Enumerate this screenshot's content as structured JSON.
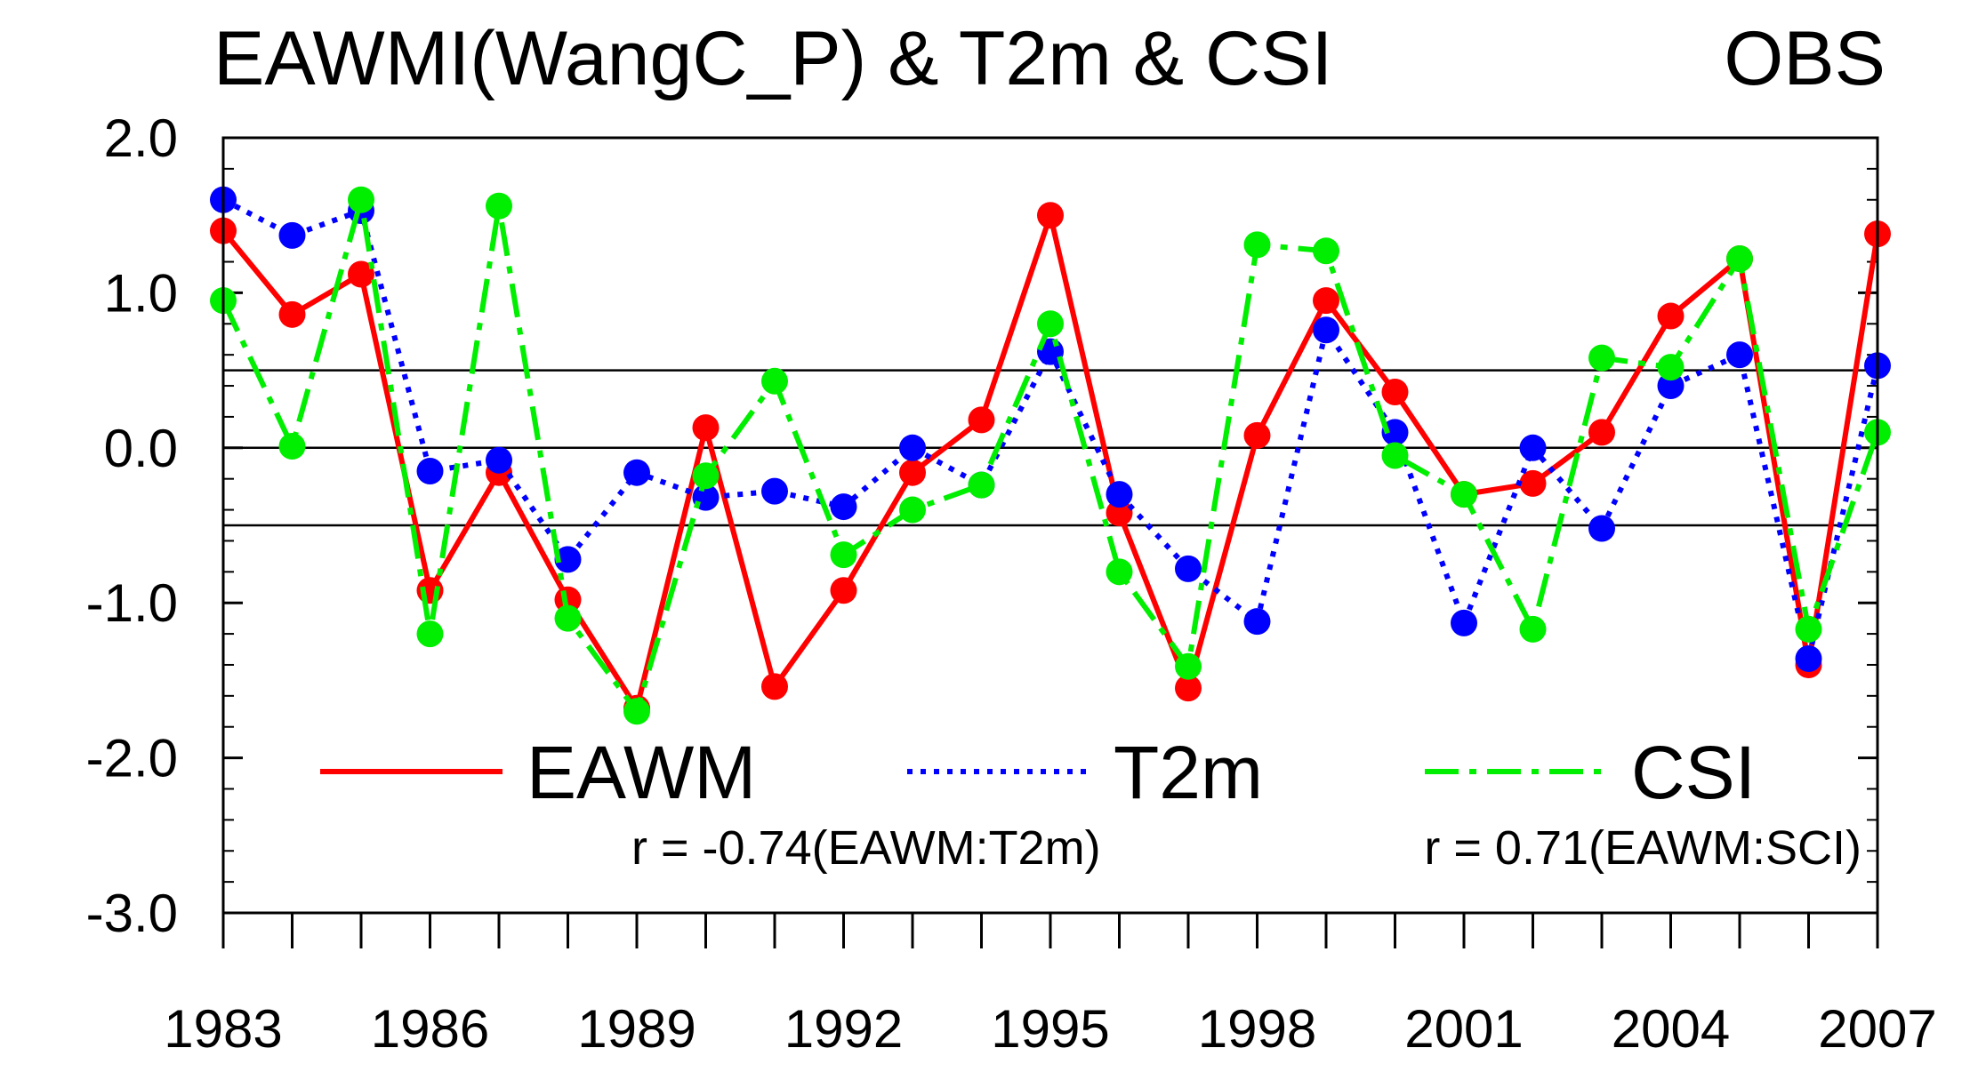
{
  "chart_data": {
    "type": "line",
    "title": "EAWMI(WangC_P) & T2m & CSI",
    "title_right": "OBS",
    "xlabel": "",
    "ylabel": "",
    "x": [
      1983,
      1984,
      1985,
      1986,
      1987,
      1988,
      1989,
      1990,
      1991,
      1992,
      1993,
      1994,
      1995,
      1996,
      1997,
      1998,
      1999,
      2000,
      2001,
      2002,
      2003,
      2004,
      2005,
      2006,
      2007
    ],
    "x_ticks": [
      "1983",
      "1986",
      "1989",
      "1992",
      "1995",
      "1998",
      "2001",
      "2004",
      "2007"
    ],
    "y_ticks": [
      "2.0",
      "1.0",
      "0.0",
      "-1.0",
      "-2.0",
      "-3.0"
    ],
    "ylim": [
      -3.0,
      2.0
    ],
    "reference_lines": [
      0.5,
      0.0,
      -0.5
    ],
    "series": [
      {
        "name": "EAWM",
        "color": "#ff0000",
        "style": "solid",
        "values": [
          1.4,
          0.86,
          1.12,
          -0.92,
          -0.16,
          -0.98,
          -1.68,
          0.13,
          -1.54,
          -0.92,
          -0.16,
          0.18,
          1.5,
          -0.42,
          -1.55,
          0.08,
          0.95,
          0.36,
          -0.3,
          -0.23,
          0.1,
          0.85,
          1.22,
          -1.4,
          1.38
        ]
      },
      {
        "name": "T2m",
        "color": "#0000ff",
        "style": "dotted",
        "values": [
          1.6,
          1.37,
          1.53,
          -0.15,
          -0.08,
          -0.72,
          -0.16,
          -0.32,
          -0.28,
          -0.38,
          0.0,
          -0.24,
          0.62,
          -0.3,
          -0.78,
          -1.12,
          0.76,
          0.1,
          -1.13,
          0.0,
          -0.52,
          0.4,
          0.6,
          -1.36,
          0.53
        ]
      },
      {
        "name": "CSI",
        "color": "#00ee00",
        "style": "dash-dot",
        "values": [
          0.95,
          0.01,
          1.6,
          -1.2,
          1.56,
          -1.1,
          -1.7,
          -0.18,
          0.43,
          -0.69,
          -0.4,
          -0.24,
          0.8,
          -0.8,
          -1.41,
          1.31,
          1.27,
          -0.05,
          -0.3,
          -1.17,
          0.58,
          0.52,
          1.22,
          -1.17,
          0.1
        ]
      }
    ],
    "legend": [
      "EAWM",
      "T2m",
      "CSI"
    ],
    "annotations": [
      "r = -0.74(EAWM:T2m)",
      "r = 0.71(EAWM:SCI)"
    ],
    "legend_placement": "bottom-inside"
  }
}
